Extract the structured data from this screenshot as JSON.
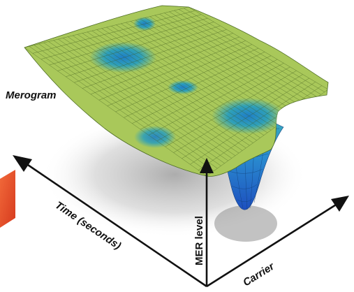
{
  "diagram": {
    "title": "Merogram",
    "axes": {
      "time": "Time (seconds)",
      "level": "MER level",
      "carrier": "Carrier"
    }
  },
  "colors": {
    "surface": "#a9c85a",
    "mesh": "#3e5a1c",
    "dip_light": "#3aa6b4",
    "dip_deep": "#1f5fc0",
    "shadow": "#bdbdbd",
    "axis": "#111111",
    "corner_accent": "#e84a2a"
  }
}
